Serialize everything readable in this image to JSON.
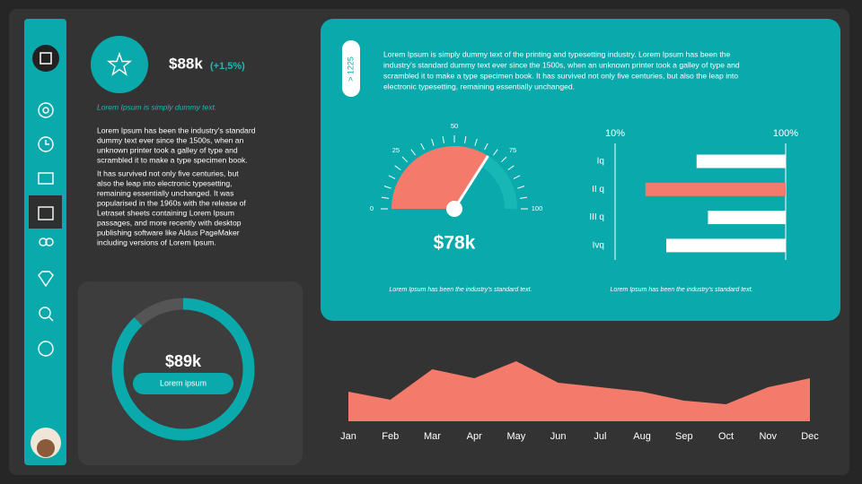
{
  "header": {
    "value": "$88k",
    "change": "(+1,5%)",
    "subtitle": "Lorem Ipsum is simply dummy text."
  },
  "left_text": {
    "paragraphs": [
      [
        "Lorem Ipsum has been the industry's standard",
        "dummy text ever since the 1500s, when an",
        "unknown printer took a galley of type and",
        "scrambled it to make a type specimen book."
      ],
      [
        "It has survived not only five centuries, but",
        "also the leap into electronic typesetting,",
        "remaining essentially unchanged. It was",
        "popularised in the 1960s with the release of",
        "Letraset sheets containing Lorem Ipsum",
        "passages, and more recently with desktop",
        "publishing software like Aldus PageMaker",
        "including versions of Lorem Ipsum."
      ]
    ]
  },
  "top_panel": {
    "tag": "> 1225",
    "text": [
      "Lorem Ipsum is simply dummy text of the printing and typesetting industry. Lorem Ipsum has been the",
      "industry's standard dummy text ever since the 1500s, when an unknown printer took a galley of type and",
      "scrambled it to make a type specimen book. It has survived not only five centuries, but also the leap into",
      "electronic typesetting, remaining essentially unchanged."
    ]
  },
  "chart_data": [
    {
      "type": "gauge",
      "title": "$78k",
      "caption": "Lorem Ipsum has been the industry's standard text.",
      "values": [
        68
      ],
      "color": "#f47b6b",
      "track_color": "#16b7b4",
      "ylim": [
        0,
        100
      ],
      "yticks": [
        0,
        25,
        50,
        75,
        100
      ]
    },
    {
      "type": "hbar",
      "caption": "Lorem Ipsum has been the industry's standard text.",
      "categories": [
        "Iq",
        "II q",
        "III q",
        "Ivq"
      ],
      "values": [
        53,
        26,
        59,
        37
      ],
      "colors": [
        "#ffffff",
        "#f47b6b",
        "#ffffff",
        "#ffffff"
      ],
      "xlim": [
        10,
        100
      ],
      "xticks": [
        {
          "value": 10,
          "label": "10%"
        },
        {
          "value": 100,
          "label": "100%"
        }
      ]
    },
    {
      "type": "area",
      "categories": [
        "Jan",
        "Feb",
        "Mar",
        "Apr",
        "May",
        "Jun",
        "Jul",
        "Aug",
        "Sep",
        "Oct",
        "Nov",
        "Dec"
      ],
      "values": [
        33,
        24,
        58,
        48,
        67,
        43,
        38,
        33,
        23,
        19,
        38,
        48
      ],
      "color": "#f47b6b",
      "ylim": [
        0,
        90
      ]
    },
    {
      "type": "donut",
      "title": "$89k",
      "button": "Lorem ipsum",
      "values": [
        88,
        12
      ],
      "colors": [
        "#0aa9ab",
        "#555555"
      ]
    }
  ]
}
